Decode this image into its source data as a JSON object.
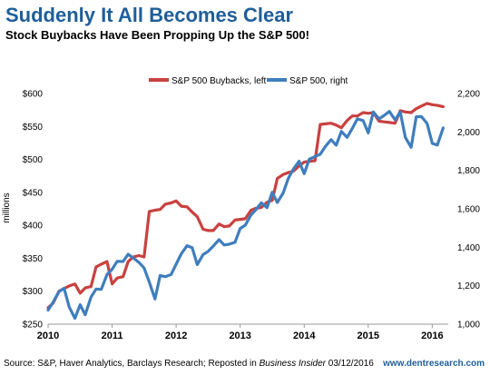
{
  "header": {
    "title": "Suddenly It All Becomes Clear",
    "subtitle": "Stock Buybacks Have Been Propping Up the S&P 500!"
  },
  "footer": {
    "source_prefix": "Source: S&P, Haver Analytics, Barclays Research; Reposted in ",
    "source_italic": "Business Insider",
    "source_date": " 03/12/2016",
    "brand": "www.dentresearch.com"
  },
  "colors": {
    "buybacks": "#c9413f",
    "sp500": "#3f7ebe"
  },
  "chart_data": {
    "type": "line",
    "title": "Suddenly It All Becomes Clear",
    "subtitle": "Stock Buybacks Have Been Propping Up the S&P 500!",
    "xlabel": "",
    "ylabel": "millions",
    "x_ticks": [
      "2010",
      "2011",
      "2012",
      "2013",
      "2014",
      "2015",
      "2016"
    ],
    "xlim": [
      2010.0,
      2016.25
    ],
    "ylim_left": [
      250,
      600
    ],
    "ylim_right": [
      1000,
      2200
    ],
    "y_left_ticks": [
      "$250",
      "$300",
      "$350",
      "$400",
      "$450",
      "$500",
      "$550",
      "$600"
    ],
    "y_left_tick_values": [
      250,
      300,
      350,
      400,
      450,
      500,
      550,
      600
    ],
    "y_right_ticks": [
      "1,000",
      "1,200",
      "1,400",
      "1,600",
      "1,800",
      "2,000",
      "2,200"
    ],
    "y_right_tick_values": [
      1000,
      1200,
      1400,
      1600,
      1800,
      2000,
      2200
    ],
    "legend_position": "top-center",
    "grid": false,
    "series": [
      {
        "name": "S&P 500 Buybacks, left",
        "axis": "left",
        "x": [
          2010.0,
          2010.08,
          2010.17,
          2010.25,
          2010.33,
          2010.42,
          2010.5,
          2010.58,
          2010.67,
          2010.75,
          2010.83,
          2010.92,
          2011.0,
          2011.08,
          2011.17,
          2011.25,
          2011.33,
          2011.42,
          2011.5,
          2011.58,
          2011.67,
          2011.75,
          2011.83,
          2011.92,
          2012.0,
          2012.08,
          2012.17,
          2012.25,
          2012.33,
          2012.42,
          2012.5,
          2012.58,
          2012.67,
          2012.75,
          2012.83,
          2012.92,
          2013.0,
          2013.08,
          2013.17,
          2013.25,
          2013.33,
          2013.42,
          2013.5,
          2013.58,
          2013.67,
          2013.75,
          2013.83,
          2013.92,
          2014.0,
          2014.08,
          2014.17,
          2014.25,
          2014.33,
          2014.42,
          2014.5,
          2014.58,
          2014.67,
          2014.75,
          2014.83,
          2014.92,
          2015.0,
          2015.08,
          2015.17,
          2015.25,
          2015.33,
          2015.42,
          2015.5,
          2015.58,
          2015.67,
          2015.75,
          2015.83,
          2015.92,
          2016.0,
          2016.08,
          2016.17
        ],
        "values": [
          275,
          282,
          300,
          304,
          308,
          311,
          297,
          305,
          307,
          337,
          341,
          345,
          311,
          320,
          322,
          345,
          352,
          354,
          352,
          421,
          423,
          424,
          432,
          434,
          437,
          429,
          428,
          420,
          413,
          394,
          392,
          392,
          402,
          398,
          399,
          408,
          409,
          410,
          423,
          426,
          427,
          435,
          438,
          471,
          477,
          480,
          482,
          490,
          496,
          497,
          498,
          553,
          554,
          555,
          552,
          548,
          559,
          566,
          566,
          571,
          570,
          571,
          558,
          557,
          556,
          555,
          574,
          572,
          571,
          577,
          581,
          585,
          583,
          582,
          580
        ]
      },
      {
        "name": "S&P 500, right",
        "axis": "right",
        "x": [
          2010.0,
          2010.08,
          2010.17,
          2010.25,
          2010.33,
          2010.42,
          2010.5,
          2010.58,
          2010.67,
          2010.75,
          2010.83,
          2010.92,
          2011.0,
          2011.08,
          2011.17,
          2011.25,
          2011.33,
          2011.42,
          2011.5,
          2011.58,
          2011.67,
          2011.75,
          2011.83,
          2011.92,
          2012.0,
          2012.08,
          2012.17,
          2012.25,
          2012.33,
          2012.42,
          2012.5,
          2012.58,
          2012.67,
          2012.75,
          2012.83,
          2012.92,
          2013.0,
          2013.08,
          2013.17,
          2013.25,
          2013.33,
          2013.42,
          2013.5,
          2013.58,
          2013.67,
          2013.75,
          2013.83,
          2013.92,
          2014.0,
          2014.08,
          2014.17,
          2014.25,
          2014.33,
          2014.42,
          2014.5,
          2014.58,
          2014.67,
          2014.75,
          2014.83,
          2014.92,
          2015.0,
          2015.08,
          2015.17,
          2015.25,
          2015.33,
          2015.42,
          2015.5,
          2015.58,
          2015.67,
          2015.75,
          2015.83,
          2015.92,
          2016.0,
          2016.08,
          2016.17
        ],
        "values": [
          1073,
          1115,
          1169,
          1187,
          1089,
          1030,
          1101,
          1049,
          1141,
          1183,
          1181,
          1258,
          1286,
          1327,
          1326,
          1364,
          1345,
          1321,
          1292,
          1219,
          1131,
          1253,
          1247,
          1258,
          1312,
          1366,
          1408,
          1398,
          1310,
          1362,
          1379,
          1406,
          1440,
          1412,
          1416,
          1426,
          1498,
          1515,
          1569,
          1597,
          1631,
          1606,
          1686,
          1633,
          1682,
          1757,
          1806,
          1848,
          1783,
          1859,
          1872,
          1884,
          1924,
          1960,
          1931,
          2003,
          1972,
          2018,
          2068,
          2059,
          1995,
          2104,
          2068,
          2086,
          2107,
          2063,
          2104,
          1972,
          1920,
          2079,
          2080,
          2044,
          1940,
          1932,
          2021
        ]
      }
    ]
  }
}
